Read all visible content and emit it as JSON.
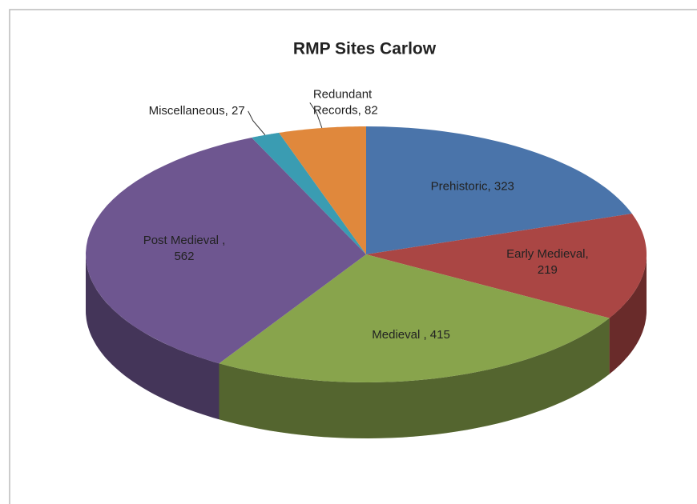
{
  "chart_data": {
    "type": "pie3d",
    "title": "RMP Sites Carlow",
    "values": [
      323,
      219,
      415,
      562,
      27,
      82
    ],
    "value_labels": [
      "Prehistoric, 323",
      "Early Medieval,\n219",
      "Medieval , 415",
      "Post Medieval ,\n562",
      "Miscellaneous, 27",
      "Redundant\nRecords, 82"
    ],
    "colors": [
      "#4a74aa",
      "#aa4644",
      "#88a44c",
      "#6e5690",
      "#3a9cb2",
      "#e0883c"
    ]
  }
}
